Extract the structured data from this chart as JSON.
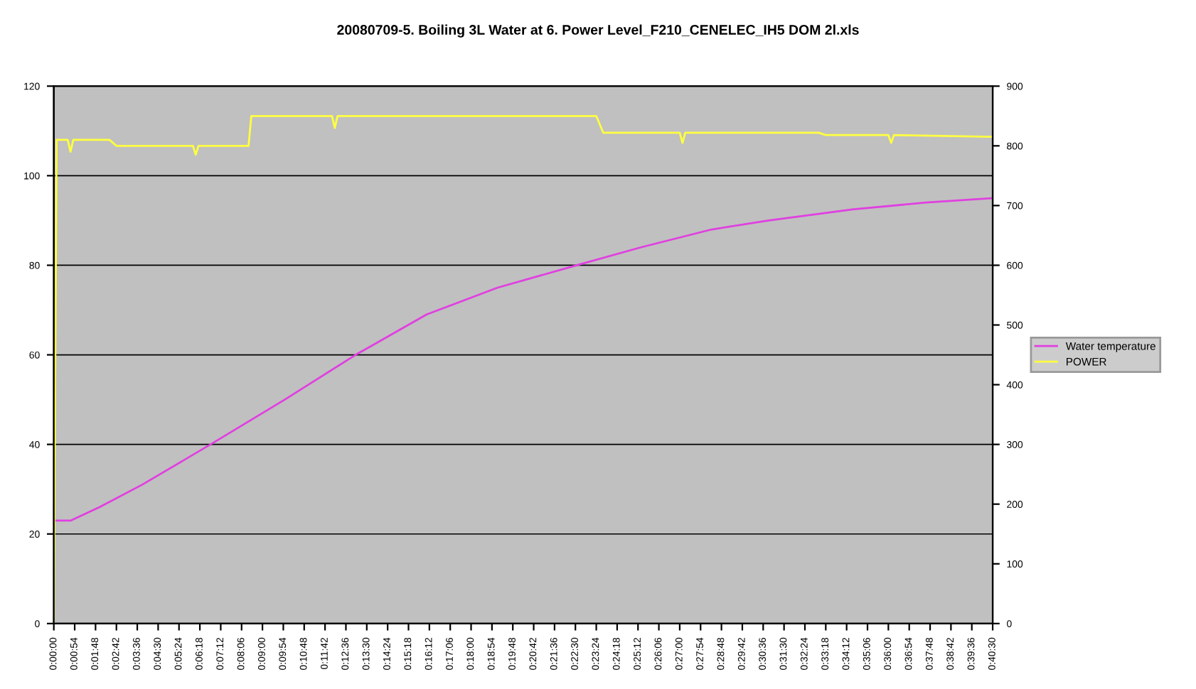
{
  "chart_data": {
    "type": "line",
    "title": "20080709-5. Boiling 3L Water at 6. Power Level_F210_CENELEC_IH5 DOM 2l.xls",
    "xlim": [
      0,
      0.675
    ],
    "xticks": [
      {
        "value": 0,
        "label": "0:00:00"
      },
      {
        "value": 0.015,
        "label": "0:00:54"
      },
      {
        "value": 0.03,
        "label": "0:01:48"
      },
      {
        "value": 0.045,
        "label": "0:02:42"
      },
      {
        "value": 0.06,
        "label": "0:03:36"
      },
      {
        "value": 0.075,
        "label": "0:04:30"
      },
      {
        "value": 0.09,
        "label": "0:05:24"
      },
      {
        "value": 0.105,
        "label": "0:06:18"
      },
      {
        "value": 0.12,
        "label": "0:07:12"
      },
      {
        "value": 0.135,
        "label": "0:08:06"
      },
      {
        "value": 0.15,
        "label": "0:09:00"
      },
      {
        "value": 0.165,
        "label": "0:09:54"
      },
      {
        "value": 0.18,
        "label": "0:10:48"
      },
      {
        "value": 0.195,
        "label": "0:11:42"
      },
      {
        "value": 0.21,
        "label": "0:12:36"
      },
      {
        "value": 0.225,
        "label": "0:13:30"
      },
      {
        "value": 0.24,
        "label": "0:14:24"
      },
      {
        "value": 0.255,
        "label": "0:15:18"
      },
      {
        "value": 0.27,
        "label": "0:16:12"
      },
      {
        "value": 0.285,
        "label": "0:17:06"
      },
      {
        "value": 0.3,
        "label": "0:18:00"
      },
      {
        "value": 0.315,
        "label": "0:18:54"
      },
      {
        "value": 0.33,
        "label": "0:19:48"
      },
      {
        "value": 0.345,
        "label": "0:20:42"
      },
      {
        "value": 0.36,
        "label": "0:21:36"
      },
      {
        "value": 0.375,
        "label": "0:22:30"
      },
      {
        "value": 0.39,
        "label": "0:23:24"
      },
      {
        "value": 0.405,
        "label": "0:24:18"
      },
      {
        "value": 0.42,
        "label": "0:25:12"
      },
      {
        "value": 0.435,
        "label": "0:26:06"
      },
      {
        "value": 0.45,
        "label": "0:27:00"
      },
      {
        "value": 0.465,
        "label": "0:27:54"
      },
      {
        "value": 0.48,
        "label": "0:28:48"
      },
      {
        "value": 0.495,
        "label": "0:29:42"
      },
      {
        "value": 0.51,
        "label": "0:30:36"
      },
      {
        "value": 0.525,
        "label": "0:31:30"
      },
      {
        "value": 0.54,
        "label": "0:32:24"
      },
      {
        "value": 0.555,
        "label": "0:33:18"
      },
      {
        "value": 0.57,
        "label": "0:34:12"
      },
      {
        "value": 0.585,
        "label": "0:35:06"
      },
      {
        "value": 0.6,
        "label": "0:36:00"
      },
      {
        "value": 0.615,
        "label": "0:36:54"
      },
      {
        "value": 0.63,
        "label": "0:37:48"
      },
      {
        "value": 0.645,
        "label": "0:38:42"
      },
      {
        "value": 0.66,
        "label": "0:39:36"
      },
      {
        "value": 0.675,
        "label": "0:40:30"
      }
    ],
    "ylim": [
      0,
      120
    ],
    "yticks": [
      0,
      20,
      40,
      60,
      80,
      100,
      120
    ],
    "y2lim": [
      0,
      900
    ],
    "y2ticks": [
      0,
      100,
      200,
      300,
      400,
      500,
      600,
      700,
      800,
      900
    ],
    "grid": "y",
    "legend": "right",
    "series": [
      {
        "name": "Water temperature",
        "color": "#e040e0",
        "x": [
          0,
          0.0123,
          0.0328,
          0.0635,
          0.1127,
          0.166,
          0.217,
          0.268,
          0.319,
          0.376,
          0.422,
          0.473,
          0.514,
          0.575,
          0.627,
          0.675
        ],
        "values": [
          23,
          23,
          26,
          31,
          40,
          50,
          60,
          69,
          75,
          80,
          84,
          88,
          90,
          92.5,
          94,
          95
        ]
      },
      {
        "name": "POWER",
        "color": "#ffff40",
        "axis": "y2",
        "x": [
          0,
          0.002,
          0.01,
          0.012,
          0.014,
          0.04,
          0.045,
          0.1,
          0.102,
          0.104,
          0.14,
          0.142,
          0.2,
          0.202,
          0.204,
          0.39,
          0.395,
          0.45,
          0.452,
          0.454,
          0.55,
          0.555,
          0.6,
          0.602,
          0.604,
          0.675
        ],
        "values": [
          0,
          810,
          810,
          790,
          810,
          810,
          800,
          800,
          785,
          800,
          800,
          850,
          850,
          830,
          850,
          850,
          822,
          822,
          805,
          822,
          822,
          818,
          818,
          805,
          818,
          815
        ]
      }
    ]
  }
}
